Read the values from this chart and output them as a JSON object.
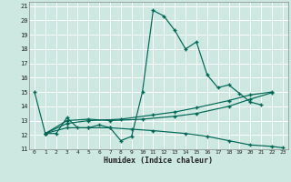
{
  "xlabel": "Humidex (Indice chaleur)",
  "xlim": [
    -0.5,
    23.5
  ],
  "ylim": [
    11,
    21.3
  ],
  "yticks": [
    11,
    12,
    13,
    14,
    15,
    16,
    17,
    18,
    19,
    20,
    21
  ],
  "xticks": [
    0,
    1,
    2,
    3,
    4,
    5,
    6,
    7,
    8,
    9,
    10,
    11,
    12,
    13,
    14,
    15,
    16,
    17,
    18,
    19,
    20,
    21,
    22,
    23
  ],
  "bg_color": "#cce8e0",
  "grid_color": "#ffffff",
  "line_color": "#006655",
  "curve_main": {
    "x": [
      0,
      1,
      2,
      3,
      4,
      5,
      6,
      7,
      8,
      9,
      10,
      11,
      12,
      13,
      14,
      15,
      16,
      17,
      18,
      19,
      20,
      21
    ],
    "y": [
      15.0,
      12.1,
      12.1,
      13.2,
      12.5,
      12.5,
      12.7,
      12.5,
      11.6,
      11.9,
      15.0,
      20.7,
      20.3,
      19.3,
      18.0,
      18.5,
      16.2,
      15.3,
      15.5,
      14.9,
      14.3,
      14.1
    ]
  },
  "curve_rise1": {
    "x": [
      1,
      3,
      5,
      8,
      11,
      13,
      15,
      18,
      20,
      22
    ],
    "y": [
      12.1,
      12.8,
      13.0,
      13.1,
      13.4,
      13.6,
      13.9,
      14.4,
      14.8,
      15.0
    ]
  },
  "curve_rise2": {
    "x": [
      1,
      3,
      5,
      7,
      10,
      13,
      15,
      18,
      20,
      22
    ],
    "y": [
      12.1,
      13.0,
      13.1,
      13.0,
      13.1,
      13.3,
      13.5,
      14.0,
      14.5,
      14.95
    ]
  },
  "curve_decline": {
    "x": [
      1,
      3,
      5,
      7,
      9,
      11,
      14,
      16,
      18,
      20,
      22,
      23
    ],
    "y": [
      12.1,
      12.5,
      12.5,
      12.5,
      12.4,
      12.3,
      12.1,
      11.9,
      11.6,
      11.3,
      11.2,
      11.1
    ]
  }
}
